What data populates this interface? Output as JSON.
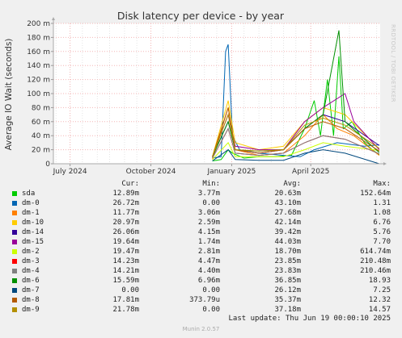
{
  "chart_data": {
    "type": "line",
    "title": "Disk latency per device - by year",
    "ylabel": "Average IO Wait (seconds)",
    "side_label": "RRDTOOL / TOBI OETIKER",
    "ylim": [
      0,
      0.2
    ],
    "yticks": [
      0,
      0.02,
      0.04,
      0.06,
      0.08,
      0.1,
      0.12,
      0.14,
      0.16,
      0.18,
      0.2
    ],
    "yticks_labels": [
      "0",
      "20 m",
      "40 m",
      "60 m",
      "80 m",
      "100 m",
      "120 m",
      "140 m",
      "160 m",
      "180 m",
      "200 m"
    ],
    "x_range": [
      "2024-06-12",
      "2025-06-19"
    ],
    "x_tick_labels": [
      {
        "date": "2024-07-01",
        "label": "July 2024"
      },
      {
        "date": "2024-10-01",
        "label": "October 2024"
      },
      {
        "date": "2025-01-01",
        "label": "January 2025"
      },
      {
        "date": "2025-04-01",
        "label": "April 2025"
      }
    ],
    "x_minor_dates": [
      "2024-06-15",
      "2024-07-01",
      "2024-07-15",
      "2024-08-01",
      "2024-08-15",
      "2024-09-01",
      "2024-09-15",
      "2024-10-01",
      "2024-10-15",
      "2024-11-01",
      "2024-11-15",
      "2024-12-01",
      "2024-12-15",
      "2025-01-01",
      "2025-01-15",
      "2025-02-01",
      "2025-02-15",
      "2025-03-01",
      "2025-03-15",
      "2025-04-01",
      "2025-04-15",
      "2025-05-01",
      "2025-05-15",
      "2025-06-01",
      "2025-06-15"
    ],
    "grid": true,
    "columns": [
      "Cur:",
      "Min:",
      "Avg:",
      "Max:"
    ],
    "series": [
      {
        "name": "sda",
        "color": "#00cc00",
        "cur": "12.89m",
        "min": "3.77m",
        "avg": "20.63m",
        "max": "152.64m",
        "points": [
          [
            "2024-12-10",
            0.004
          ],
          [
            "2024-12-20",
            0.006
          ],
          [
            "2024-12-28",
            0.02
          ],
          [
            "2025-01-02",
            0.015
          ],
          [
            "2025-01-15",
            0.008
          ],
          [
            "2025-02-01",
            0.01
          ],
          [
            "2025-02-20",
            0.01
          ],
          [
            "2025-03-10",
            0.012
          ],
          [
            "2025-03-25",
            0.05
          ],
          [
            "2025-04-05",
            0.09
          ],
          [
            "2025-04-12",
            0.04
          ],
          [
            "2025-04-20",
            0.12
          ],
          [
            "2025-04-27",
            0.04
          ],
          [
            "2025-05-03",
            0.153
          ],
          [
            "2025-05-08",
            0.05
          ],
          [
            "2025-05-18",
            0.06
          ],
          [
            "2025-06-01",
            0.03
          ],
          [
            "2025-06-10",
            0.02
          ],
          [
            "2025-06-18",
            0.013
          ]
        ]
      },
      {
        "name": "dm-0",
        "color": "#0066b3",
        "cur": "26.72m",
        "min": "0.00",
        "avg": "43.10m",
        "max": "1.31",
        "points": [
          [
            "2024-12-10",
            0.008
          ],
          [
            "2024-12-20",
            0.01
          ],
          [
            "2024-12-25",
            0.16
          ],
          [
            "2024-12-28",
            0.17
          ],
          [
            "2025-01-02",
            0.04
          ],
          [
            "2025-01-10",
            0.02
          ],
          [
            "2025-02-01",
            0.015
          ],
          [
            "2025-03-01",
            0.012
          ],
          [
            "2025-03-20",
            0.01
          ],
          [
            "2025-04-05",
            0.02
          ],
          [
            "2025-05-01",
            0.03
          ],
          [
            "2025-06-01",
            0.025
          ],
          [
            "2025-06-18",
            0.027
          ]
        ]
      },
      {
        "name": "dm-1",
        "color": "#ff8000",
        "cur": "11.77m",
        "min": "3.06m",
        "avg": "27.68m",
        "max": "1.08",
        "points": [
          [
            "2024-12-10",
            0.006
          ],
          [
            "2024-12-28",
            0.08
          ],
          [
            "2025-01-05",
            0.02
          ],
          [
            "2025-02-01",
            0.012
          ],
          [
            "2025-03-01",
            0.015
          ],
          [
            "2025-03-25",
            0.04
          ],
          [
            "2025-04-15",
            0.07
          ],
          [
            "2025-05-01",
            0.05
          ],
          [
            "2025-05-20",
            0.04
          ],
          [
            "2025-06-18",
            0.012
          ]
        ]
      },
      {
        "name": "dm-10",
        "color": "#ffcc00",
        "cur": "20.97m",
        "min": "2.59m",
        "avg": "42.14m",
        "max": "6.76",
        "points": [
          [
            "2024-12-10",
            0.01
          ],
          [
            "2024-12-28",
            0.09
          ],
          [
            "2025-01-05",
            0.03
          ],
          [
            "2025-02-01",
            0.02
          ],
          [
            "2025-03-01",
            0.025
          ],
          [
            "2025-03-25",
            0.06
          ],
          [
            "2025-04-15",
            0.08
          ],
          [
            "2025-05-10",
            0.07
          ],
          [
            "2025-06-18",
            0.021
          ]
        ]
      },
      {
        "name": "dm-14",
        "color": "#330099",
        "cur": "26.06m",
        "min": "4.15m",
        "avg": "39.42m",
        "max": "5.76",
        "points": [
          [
            "2024-12-10",
            0.01
          ],
          [
            "2024-12-28",
            0.06
          ],
          [
            "2025-01-05",
            0.02
          ],
          [
            "2025-02-01",
            0.015
          ],
          [
            "2025-03-01",
            0.02
          ],
          [
            "2025-03-25",
            0.05
          ],
          [
            "2025-04-15",
            0.07
          ],
          [
            "2025-05-10",
            0.06
          ],
          [
            "2025-06-18",
            0.026
          ]
        ]
      },
      {
        "name": "dm-15",
        "color": "#990099",
        "cur": "19.64m",
        "min": "1.74m",
        "avg": "44.03m",
        "max": "7.70",
        "points": [
          [
            "2024-12-10",
            0.01
          ],
          [
            "2024-12-28",
            0.07
          ],
          [
            "2025-01-05",
            0.025
          ],
          [
            "2025-02-01",
            0.02
          ],
          [
            "2025-03-01",
            0.02
          ],
          [
            "2025-03-25",
            0.06
          ],
          [
            "2025-04-15",
            0.08
          ],
          [
            "2025-05-10",
            0.1
          ],
          [
            "2025-05-20",
            0.06
          ],
          [
            "2025-06-18",
            0.02
          ]
        ]
      },
      {
        "name": "dm-2",
        "color": "#ccff00",
        "cur": "19.47m",
        "min": "2.81m",
        "avg": "18.70m",
        "max": "614.74m",
        "points": [
          [
            "2024-12-10",
            0.006
          ],
          [
            "2024-12-28",
            0.03
          ],
          [
            "2025-01-05",
            0.01
          ],
          [
            "2025-02-01",
            0.01
          ],
          [
            "2025-03-01",
            0.01
          ],
          [
            "2025-03-25",
            0.02
          ],
          [
            "2025-04-15",
            0.03
          ],
          [
            "2025-05-10",
            0.025
          ],
          [
            "2025-06-18",
            0.019
          ]
        ]
      },
      {
        "name": "dm-3",
        "color": "#ff0000",
        "cur": "14.23m",
        "min": "4.47m",
        "avg": "23.85m",
        "max": "210.48m",
        "points": [
          [
            "2024-12-10",
            0.008
          ],
          [
            "2024-12-28",
            0.05
          ],
          [
            "2025-01-05",
            0.015
          ],
          [
            "2025-02-01",
            0.012
          ],
          [
            "2025-03-01",
            0.015
          ],
          [
            "2025-03-25",
            0.03
          ],
          [
            "2025-04-15",
            0.04
          ],
          [
            "2025-05-10",
            0.035
          ],
          [
            "2025-06-18",
            0.014
          ]
        ]
      },
      {
        "name": "dm-4",
        "color": "#808080",
        "cur": "14.21m",
        "min": "4.40m",
        "avg": "23.83m",
        "max": "210.46m",
        "points": [
          [
            "2024-12-10",
            0.008
          ],
          [
            "2024-12-28",
            0.05
          ],
          [
            "2025-01-05",
            0.015
          ],
          [
            "2025-02-01",
            0.012
          ],
          [
            "2025-03-01",
            0.015
          ],
          [
            "2025-03-25",
            0.03
          ],
          [
            "2025-04-15",
            0.04
          ],
          [
            "2025-05-10",
            0.035
          ],
          [
            "2025-06-18",
            0.014
          ]
        ]
      },
      {
        "name": "dm-6",
        "color": "#008f00",
        "cur": "15.59m",
        "min": "6.96m",
        "avg": "36.85m",
        "max": "18.93",
        "points": [
          [
            "2024-12-10",
            0.01
          ],
          [
            "2024-12-28",
            0.06
          ],
          [
            "2025-01-05",
            0.02
          ],
          [
            "2025-02-01",
            0.018
          ],
          [
            "2025-03-01",
            0.02
          ],
          [
            "2025-03-25",
            0.05
          ],
          [
            "2025-04-15",
            0.07
          ],
          [
            "2025-05-03",
            0.19
          ],
          [
            "2025-05-10",
            0.06
          ],
          [
            "2025-06-18",
            0.016
          ]
        ]
      },
      {
        "name": "dm-7",
        "color": "#00487d",
        "cur": "0.00",
        "min": "0.00",
        "avg": "26.12m",
        "max": "7.25",
        "points": [
          [
            "2024-12-10",
            0.004
          ],
          [
            "2024-12-28",
            0.02
          ],
          [
            "2025-01-05",
            0.006
          ],
          [
            "2025-02-01",
            0.005
          ],
          [
            "2025-03-01",
            0.005
          ],
          [
            "2025-03-25",
            0.015
          ],
          [
            "2025-04-15",
            0.02
          ],
          [
            "2025-05-10",
            0.015
          ],
          [
            "2025-06-18",
            0
          ]
        ]
      },
      {
        "name": "dm-8",
        "color": "#b35a00",
        "cur": "17.81m",
        "min": "373.79u",
        "avg": "35.37m",
        "max": "12.32",
        "points": [
          [
            "2024-12-10",
            0.01
          ],
          [
            "2024-12-28",
            0.08
          ],
          [
            "2025-01-05",
            0.02
          ],
          [
            "2025-02-01",
            0.015
          ],
          [
            "2025-03-01",
            0.02
          ],
          [
            "2025-03-25",
            0.05
          ],
          [
            "2025-04-15",
            0.06
          ],
          [
            "2025-05-10",
            0.05
          ],
          [
            "2025-06-18",
            0.018
          ]
        ]
      },
      {
        "name": "dm-9",
        "color": "#b38f00",
        "cur": "21.78m",
        "min": "0.00",
        "avg": "37.18m",
        "max": "14.57",
        "points": [
          [
            "2024-12-10",
            0.01
          ],
          [
            "2024-12-28",
            0.07
          ],
          [
            "2025-01-05",
            0.02
          ],
          [
            "2025-02-01",
            0.018
          ],
          [
            "2025-03-01",
            0.02
          ],
          [
            "2025-03-25",
            0.055
          ],
          [
            "2025-04-15",
            0.065
          ],
          [
            "2025-05-10",
            0.055
          ],
          [
            "2025-06-18",
            0.022
          ]
        ]
      }
    ]
  },
  "footer": {
    "last_update": "Last update: Thu Jun 19 00:00:10 2025",
    "version": "Munin 2.0.57"
  }
}
